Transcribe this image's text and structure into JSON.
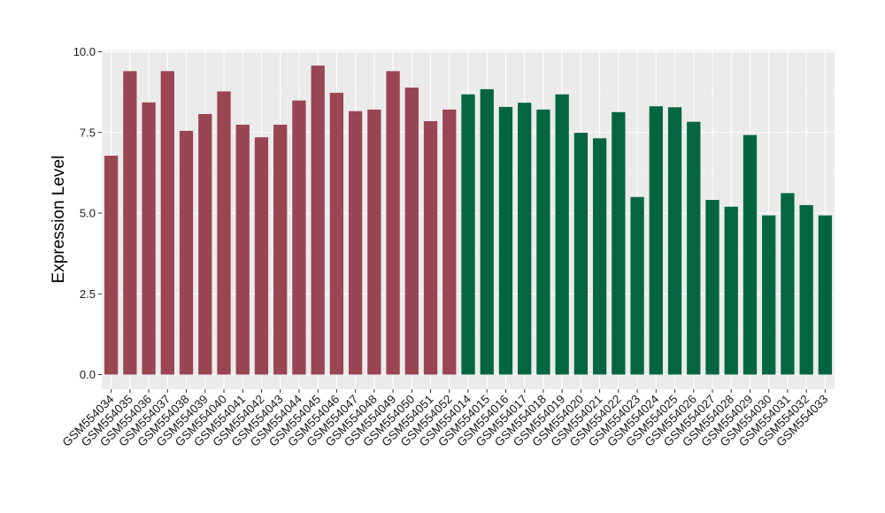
{
  "chart_data": {
    "type": "bar",
    "title": "",
    "xlabel": "",
    "ylabel": "Expression Level",
    "ylim": [
      0,
      10
    ],
    "yticks": [
      "0.0",
      "2.5",
      "5.0",
      "7.5",
      "10.0"
    ],
    "grid": true,
    "legend": "none",
    "categories": [
      "GSM554034",
      "GSM554035",
      "GSM554036",
      "GSM554037",
      "GSM554038",
      "GSM554039",
      "GSM554040",
      "GSM554041",
      "GSM554042",
      "GSM554043",
      "GSM554044",
      "GSM554045",
      "GSM554046",
      "GSM554047",
      "GSM554048",
      "GSM554049",
      "GSM554050",
      "GSM554051",
      "GSM554052",
      "GSM554014",
      "GSM554015",
      "GSM554016",
      "GSM554017",
      "GSM554018",
      "GSM554019",
      "GSM554020",
      "GSM554021",
      "GSM554022",
      "GSM554023",
      "GSM554024",
      "GSM554025",
      "GSM554026",
      "GSM554027",
      "GSM554028",
      "GSM554029",
      "GSM554030",
      "GSM554031",
      "GSM554032",
      "GSM554033"
    ],
    "values": [
      6.78,
      9.4,
      8.43,
      9.4,
      7.55,
      8.07,
      8.77,
      7.74,
      7.35,
      7.74,
      8.49,
      9.57,
      8.73,
      8.16,
      8.21,
      9.4,
      8.89,
      7.85,
      8.21,
      8.68,
      8.84,
      8.29,
      8.42,
      8.21,
      8.68,
      7.49,
      7.32,
      8.13,
      5.5,
      8.31,
      8.28,
      7.83,
      5.41,
      5.2,
      7.42,
      4.93,
      5.62,
      5.25,
      4.93
    ],
    "group_sizes": [
      19,
      20
    ],
    "group_colors": [
      "#9a4552",
      "#036641"
    ]
  }
}
